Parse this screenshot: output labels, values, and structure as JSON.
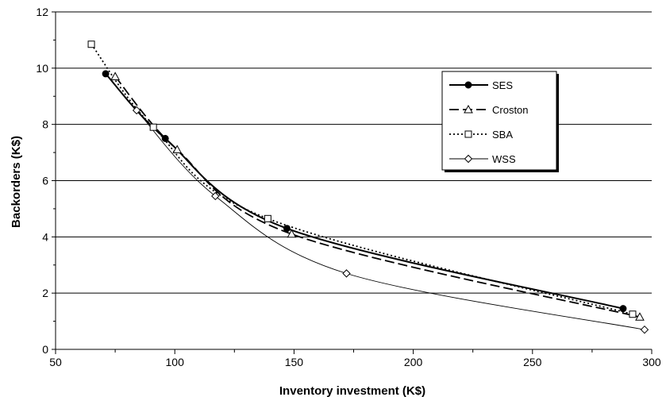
{
  "chart_data": {
    "type": "line",
    "title": "",
    "xlabel": "Inventory investment (K$)",
    "ylabel": "Backorders (K$)",
    "xlim": [
      50,
      300
    ],
    "ylim": [
      0,
      12
    ],
    "x_ticks": [
      "50",
      "100",
      "150",
      "200",
      "250",
      "300"
    ],
    "y_ticks": [
      "0",
      "2",
      "4",
      "6",
      "8",
      "10",
      "12"
    ],
    "grid": "horizontal",
    "legend_position": "right",
    "series": [
      {
        "name": "SES",
        "marker": "filled-circle",
        "line_style": "solid-thick",
        "x": [
          71,
          96,
          147,
          288
        ],
        "y": [
          9.8,
          7.5,
          4.3,
          1.45
        ]
      },
      {
        "name": "Croston",
        "marker": "open-triangle",
        "line_style": "long-dash",
        "x": [
          75,
          101,
          149,
          295
        ],
        "y": [
          9.7,
          7.1,
          4.1,
          1.15
        ]
      },
      {
        "name": "SBA",
        "marker": "open-square",
        "line_style": "dotted",
        "x": [
          65,
          91,
          139,
          292
        ],
        "y": [
          10.85,
          7.9,
          4.65,
          1.25
        ]
      },
      {
        "name": "WSS",
        "marker": "open-diamond",
        "line_style": "thin-solid",
        "x": [
          84,
          117,
          172,
          297
        ],
        "y": [
          8.5,
          5.45,
          2.7,
          0.7
        ]
      }
    ]
  }
}
